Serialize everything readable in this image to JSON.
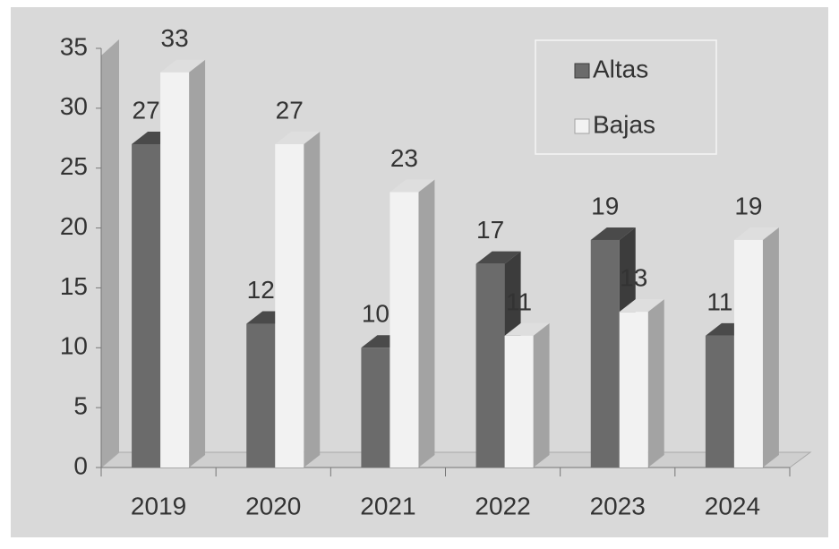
{
  "chart_data": {
    "type": "bar3d",
    "categories": [
      "2019",
      "2020",
      "2021",
      "2022",
      "2023",
      "2024"
    ],
    "series": [
      {
        "name": "Altas",
        "color": "#6b6b6b",
        "values": [
          27,
          12,
          10,
          17,
          19,
          11
        ]
      },
      {
        "name": "Bajas",
        "color": "#f2f2f2",
        "values": [
          33,
          27,
          23,
          11,
          13,
          19
        ]
      }
    ],
    "ylim": [
      0,
      35
    ],
    "yticks": [
      0,
      5,
      10,
      15,
      20,
      25,
      30,
      35
    ],
    "legend": "upper right"
  }
}
